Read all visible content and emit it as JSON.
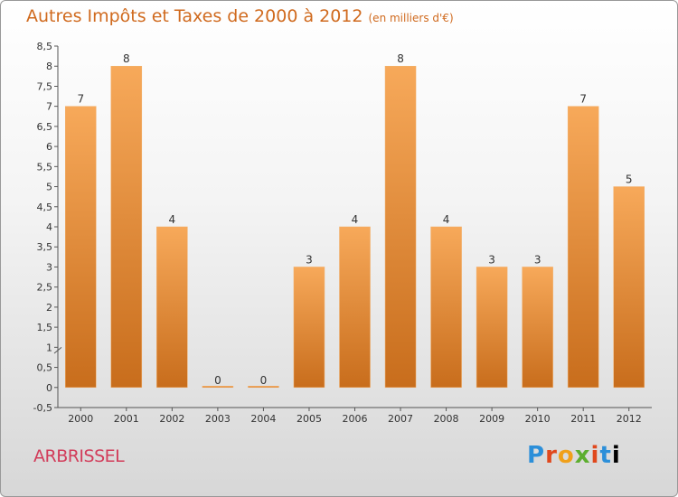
{
  "header": {
    "title": "Autres Impôts et Taxes de 2000 à 2012",
    "subtitle": "(en milliers d'€)"
  },
  "footer": {
    "town": "ARBRISSEL",
    "logo_letters": [
      "P",
      "r",
      "o",
      "x",
      "i",
      "t",
      "i"
    ]
  },
  "colors": {
    "bar_light": "#f7a95a",
    "bar_dark": "#c86d1c",
    "title": "#d06a1e",
    "town": "#d23c5a"
  },
  "chart_data": {
    "type": "bar",
    "categories": [
      "2000",
      "2001",
      "2002",
      "2003",
      "2004",
      "2005",
      "2006",
      "2007",
      "2008",
      "2009",
      "2010",
      "2011",
      "2012"
    ],
    "values": [
      7,
      8,
      4,
      0,
      0,
      3,
      4,
      8,
      4,
      3,
      3,
      7,
      5
    ],
    "data_labels": [
      "7",
      "8",
      "4",
      "0",
      "0",
      "3",
      "4",
      "8",
      "4",
      "3",
      "3",
      "7",
      "5"
    ],
    "ylim": [
      -0.5,
      8.5
    ],
    "yticks": [
      "-0,5",
      "0",
      "0,5",
      "1",
      "1,5",
      "2",
      "2,5",
      "3",
      "3,5",
      "4",
      "4,5",
      "5",
      "5,5",
      "6",
      "6,5",
      "7",
      "7,5",
      "8",
      "8,5"
    ],
    "ytick_values": [
      -0.5,
      0,
      0.5,
      1,
      1.5,
      2,
      2.5,
      3,
      3.5,
      4,
      4.5,
      5,
      5.5,
      6,
      6.5,
      7,
      7.5,
      8,
      8.5
    ],
    "grid": false,
    "legend": "none"
  }
}
